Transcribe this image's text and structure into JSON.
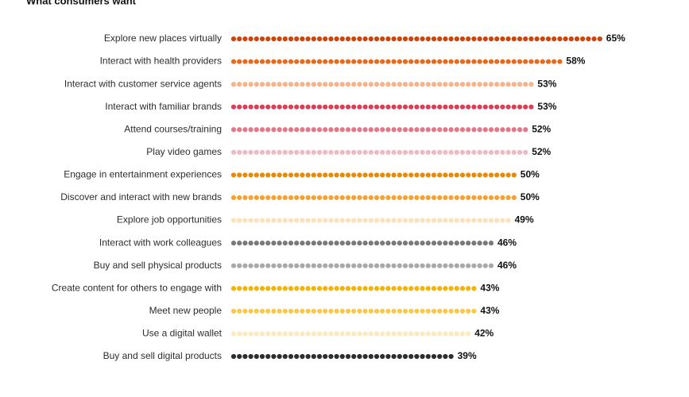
{
  "chart_data": {
    "type": "dotbar",
    "title": "What consumers want",
    "categories": [
      "Explore new places virtually",
      "Interact with health providers",
      "Interact with customer service agents",
      "Interact with familiar brands",
      "Attend courses/training",
      "Play video games",
      "Engage in entertainment experiences",
      "Discover and interact with new brands",
      "Explore job opportunities",
      "Interact with work colleagues",
      "Buy and sell physical products",
      "Create content for others to engage with",
      "Meet new people",
      "Use a digital wallet",
      "Buy and sell digital products"
    ],
    "values": [
      65,
      58,
      53,
      53,
      52,
      52,
      50,
      50,
      49,
      46,
      46,
      43,
      43,
      42,
      39
    ],
    "value_labels": [
      "65%",
      "58%",
      "53%",
      "53%",
      "52%",
      "52%",
      "50%",
      "50%",
      "49%",
      "46%",
      "46%",
      "43%",
      "43%",
      "42%",
      "39%"
    ],
    "colors": [
      "#c9470c",
      "#eb6a1a",
      "#f7b48c",
      "#d6405a",
      "#e47888",
      "#f0b8c2",
      "#e48a0c",
      "#f4a235",
      "#fde1b8",
      "#7a7a7a",
      "#a9a9a9",
      "#f5b400",
      "#fcc84a",
      "#fde9c0",
      "#2d2d2d"
    ]
  }
}
